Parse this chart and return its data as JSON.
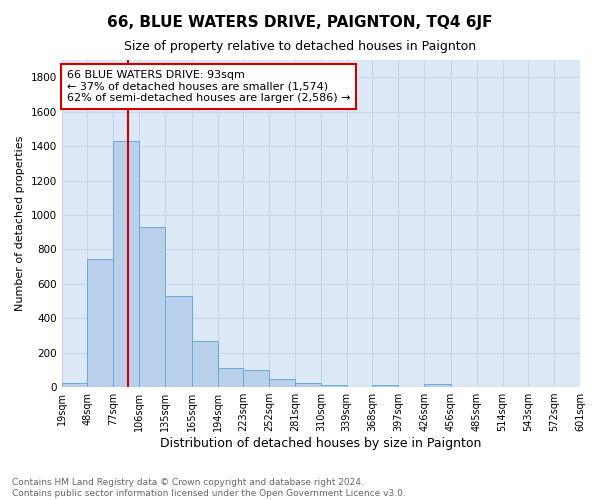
{
  "title": "66, BLUE WATERS DRIVE, PAIGNTON, TQ4 6JF",
  "subtitle": "Size of property relative to detached houses in Paignton",
  "xlabel": "Distribution of detached houses by size in Paignton",
  "ylabel": "Number of detached properties",
  "bar_color": "#b8d0ea",
  "bar_edgecolor": "#6aaad4",
  "grid_color": "#c8d4e8",
  "background_color": "#dce8f5",
  "vline_x": 93,
  "vline_color": "#cc0000",
  "annotation_text": "66 BLUE WATERS DRIVE: 93sqm\n← 37% of detached houses are smaller (1,574)\n62% of semi-detached houses are larger (2,586) →",
  "annotation_box_facecolor": "white",
  "annotation_box_edgecolor": "#cc0000",
  "footer_text": "Contains HM Land Registry data © Crown copyright and database right 2024.\nContains public sector information licensed under the Open Government Licence v3.0.",
  "bin_edges": [
    19,
    48,
    77,
    106,
    135,
    165,
    194,
    223,
    252,
    281,
    310,
    339,
    368,
    397,
    426,
    456,
    485,
    514,
    543,
    572,
    601
  ],
  "bin_heights": [
    22,
    742,
    1432,
    932,
    530,
    268,
    110,
    98,
    45,
    25,
    15,
    0,
    15,
    0,
    18,
    0,
    0,
    0,
    0,
    0
  ],
  "ylim": [
    0,
    1900
  ],
  "yticks": [
    0,
    200,
    400,
    600,
    800,
    1000,
    1200,
    1400,
    1600,
    1800
  ],
  "tick_labels": [
    "19sqm",
    "48sqm",
    "77sqm",
    "106sqm",
    "135sqm",
    "165sqm",
    "194sqm",
    "223sqm",
    "252sqm",
    "281sqm",
    "310sqm",
    "339sqm",
    "368sqm",
    "397sqm",
    "426sqm",
    "456sqm",
    "485sqm",
    "514sqm",
    "543sqm",
    "572sqm",
    "601sqm"
  ],
  "title_fontsize": 11,
  "subtitle_fontsize": 9,
  "xlabel_fontsize": 9,
  "ylabel_fontsize": 8,
  "tick_fontsize": 7,
  "annotation_fontsize": 8,
  "footer_fontsize": 6.5
}
